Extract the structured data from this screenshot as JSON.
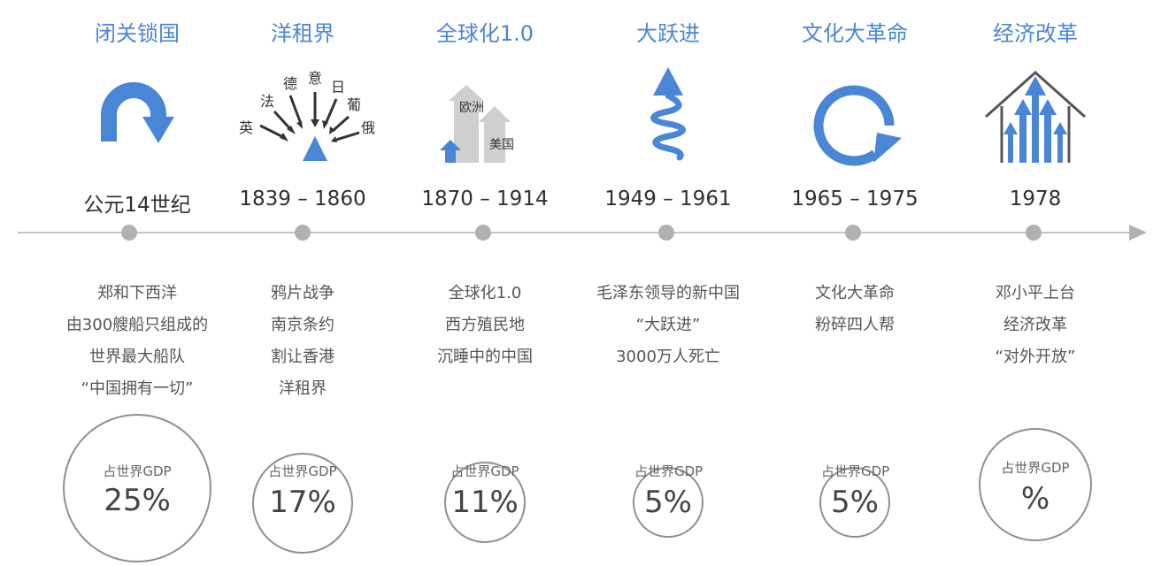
{
  "timeline": [
    {
      "title": "闭关锁国",
      "date": "公元14世纪",
      "lines": [
        "郑和下西洋",
        "由300艘船只组成的",
        "世界最大船队",
        "“中国拥有一切”"
      ],
      "gdp_label": "占世界GDP",
      "gdp_value": "25%"
    },
    {
      "title": "洋租界",
      "date": "1839 – 1860",
      "lines": [
        "鸦片战争",
        "南京条约",
        "割让香港",
        "洋租界"
      ],
      "gdp_label": "占世界GDP",
      "gdp_value": "17%",
      "icon_labels": [
        "英",
        "法",
        "德",
        "意",
        "日",
        "葡",
        "俄"
      ]
    },
    {
      "title": "全球化1.0",
      "date": "1870 – 1914",
      "lines": [
        "全球化1.0",
        "西方殖民地",
        "沉睡中的中国"
      ],
      "gdp_label": "占世界GDP",
      "gdp_value": "11%",
      "icon_labels": [
        "欧洲",
        "美国"
      ]
    },
    {
      "title": "大跃进",
      "date": "1949 – 1961",
      "lines": [
        "毛泽东领导的新中国",
        "“大跃进”",
        "3000万人死亡"
      ],
      "gdp_label": "占世界GDP",
      "gdp_value": "5%"
    },
    {
      "title": "文化大革命",
      "date": "1965 – 1975",
      "lines": [
        "文化大革命",
        "粉碎四人帮"
      ],
      "gdp_label": "占世界GDP",
      "gdp_value": "5%"
    },
    {
      "title": "经济改革",
      "date": "1978",
      "lines": [
        "邓小平上台",
        "经济改革",
        "“对外开放”"
      ],
      "gdp_label": "占世界GDP",
      "gdp_value": "%"
    }
  ],
  "colors": {
    "accent": "#4a86d6",
    "gray_arrow": "#cfcfcf",
    "axis": "#b1b1b1",
    "circle": "#8f8f8f"
  }
}
